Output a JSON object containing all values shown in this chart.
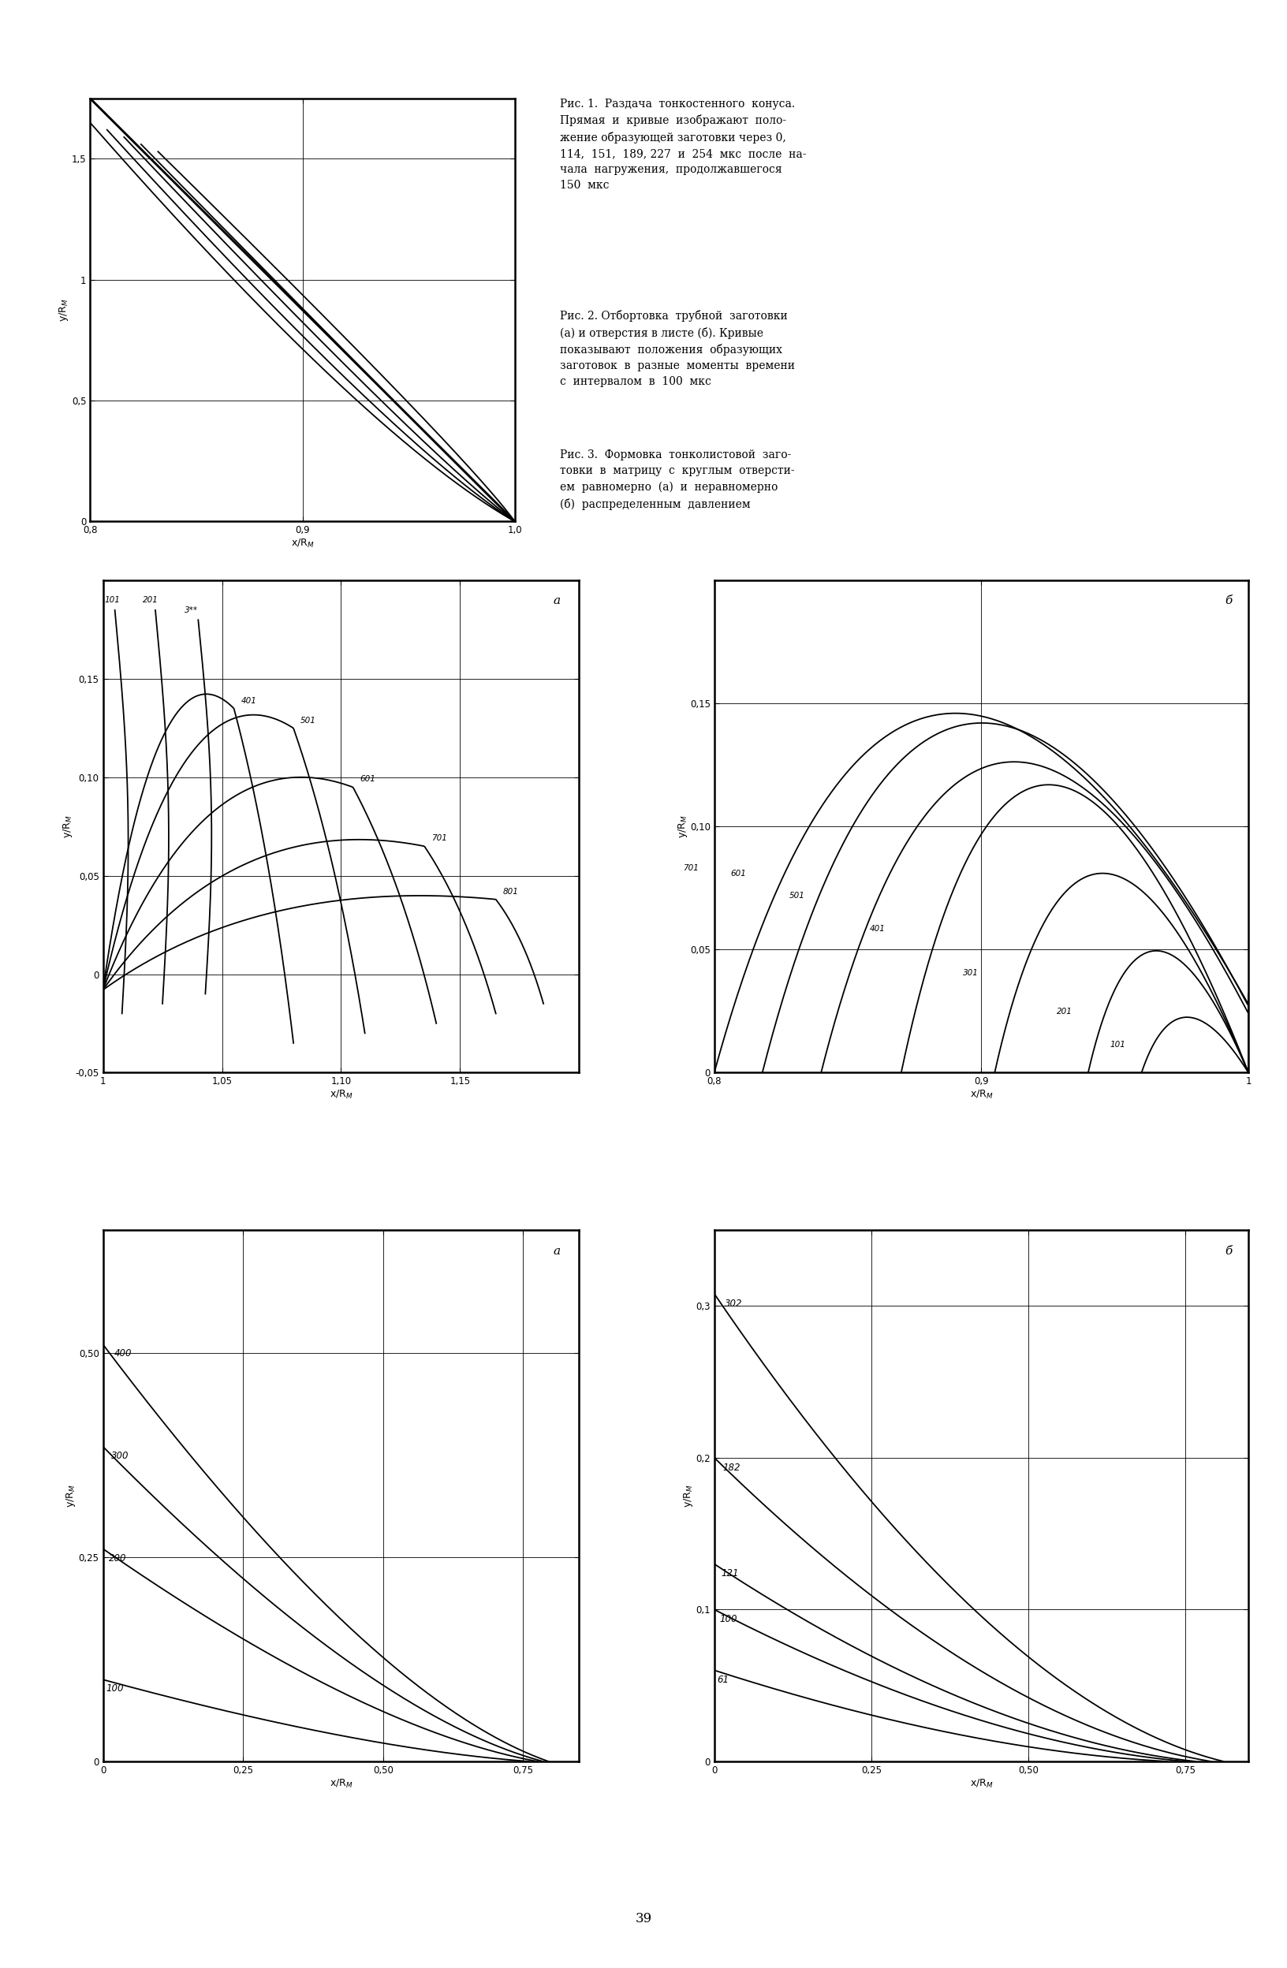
{
  "fig_width": 16.32,
  "fig_height": 24.96,
  "bg_color": "#ffffff",
  "page_number": "39",
  "caption1": "Рис. 1.  Раздача  тонкостенного  конуса.\nПрямая  и  кривые  изображают  поло-\nжение образующей заготовки через 0,\n114,  151,  189, 227  и  254  мкс  после  на-\nчала  нагружения,  продолжавшегося\n150  мкс",
  "caption2": "Рис. 2. Отбортовка  трубной  заготовки\n(а) и отверстия в листе (б). Кривые\nпоказывают  положения  образующих\nзаготовок  в  разные  моменты  времени\nс  интервалом  в  100  мкс",
  "caption3": "Рис. 3.  Формовка  тонколистовой  заго-\nтовки  в  матрицу  с  круглым  отверсти-\nем  равномерно  (а)  и  неравномерно\n(б)  распределенным  давлением"
}
